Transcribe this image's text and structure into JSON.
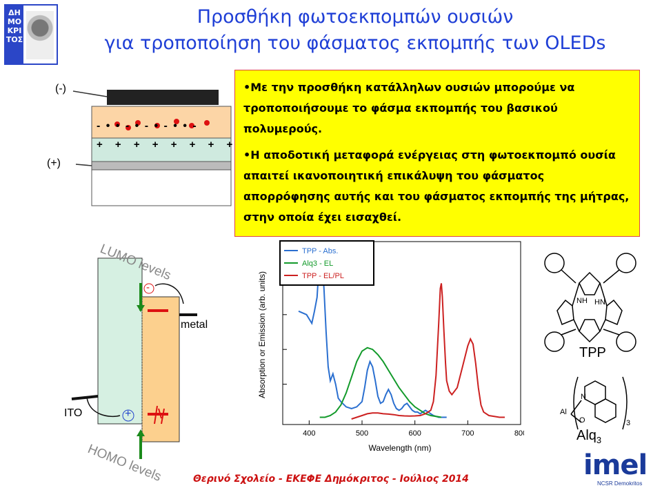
{
  "slide": {
    "title_line1": "Προσθήκη φωτοεκπομπών ουσιών",
    "title_line2": "για τροποποίηση του φάσματος εκπομπής των OLEDs",
    "logo_letters": "ΔΗ ΜΟ ΚΡΙ ΤΟΣ",
    "bullet1": "•Με την προσθήκη κατάλληλων ουσιών μπορούμε να τροποποιήσουμε το φάσμα εκπομπής του βασικού πολυμερούς.",
    "bullet2": "•Η αποδοτική μεταφορά ενέργειας στη φωτοεκπομπό ουσία απαιτεί ικανοποιητική επικάλυψη του φάσματος απορρόφησης αυτής και του φάσματος εκπομπής της μήτρας,  στην οποία έχει εισαχθεί.",
    "footer": "Θερινό Σχολείο - ΕΚΕΦΕ Δημόκριτος - Ιούλιος 2014",
    "imel_word": "imel",
    "imel_sub": "NCSR Demokritos"
  },
  "device_diagram": {
    "cathode_label": "(-)",
    "anode_label": "(+)",
    "minus_row": "- • • - • - • - • • -",
    "plus_row": "+ + + + + + + + + +"
  },
  "energy_diagram": {
    "lumo_label": "LUMO levels",
    "homo_label": "HOMO levels",
    "metal_label": "metal",
    "ito_label": "ITO",
    "electron_sign": "-",
    "hole_sign": "+"
  },
  "chart_data": {
    "type": "line",
    "title": "",
    "xlabel": "Wavelength (nm)",
    "ylabel": "Absorption or Emission (arb. units)",
    "xlim": [
      350,
      800
    ],
    "x_ticks": [
      "400",
      "500",
      "600",
      "700",
      "800"
    ],
    "legend_position": "top-left",
    "series": [
      {
        "name": "TPP - Abs.",
        "color": "#2a6fd0",
        "x": [
          380,
          395,
          405,
          410,
          415,
          418,
          420,
          422,
          424,
          428,
          432,
          436,
          440,
          445,
          450,
          455,
          460,
          470,
          480,
          490,
          500,
          505,
          510,
          515,
          520,
          525,
          530,
          535,
          540,
          545,
          550,
          555,
          560,
          565,
          570,
          575,
          580,
          585,
          590,
          595,
          600,
          605,
          610,
          615,
          620,
          625,
          630,
          635,
          640,
          645,
          650,
          655,
          660
        ],
        "y": [
          0.62,
          0.6,
          0.55,
          0.62,
          0.7,
          0.85,
          0.98,
          1.0,
          0.95,
          0.75,
          0.5,
          0.3,
          0.22,
          0.26,
          0.2,
          0.12,
          0.1,
          0.07,
          0.06,
          0.07,
          0.1,
          0.18,
          0.28,
          0.33,
          0.3,
          0.22,
          0.13,
          0.09,
          0.1,
          0.14,
          0.17,
          0.14,
          0.09,
          0.06,
          0.05,
          0.06,
          0.08,
          0.09,
          0.07,
          0.05,
          0.04,
          0.04,
          0.03,
          0.04,
          0.05,
          0.04,
          0.03,
          0.02,
          0.015,
          0.01,
          0.01,
          0.01,
          0.01
        ]
      },
      {
        "name": "Alq3 - EL",
        "color": "#129a2a",
        "x": [
          420,
          430,
          440,
          450,
          460,
          470,
          480,
          490,
          500,
          510,
          520,
          530,
          540,
          550,
          560,
          570,
          580,
          590,
          600,
          610,
          620,
          630,
          640,
          650
        ],
        "y": [
          0.01,
          0.01,
          0.02,
          0.04,
          0.08,
          0.15,
          0.24,
          0.33,
          0.39,
          0.41,
          0.4,
          0.37,
          0.33,
          0.28,
          0.23,
          0.18,
          0.14,
          0.1,
          0.07,
          0.05,
          0.03,
          0.02,
          0.015,
          0.01
        ]
      },
      {
        "name": "TPP - EL/PL",
        "color": "#cc2020",
        "x": [
          480,
          490,
          500,
          510,
          520,
          530,
          540,
          550,
          560,
          570,
          580,
          590,
          600,
          610,
          620,
          630,
          635,
          640,
          645,
          648,
          650,
          652,
          655,
          658,
          660,
          665,
          670,
          680,
          690,
          700,
          705,
          710,
          715,
          720,
          725,
          730,
          740,
          750,
          760,
          770
        ],
        "y": [
          0.0,
          0.01,
          0.02,
          0.03,
          0.035,
          0.035,
          0.03,
          0.028,
          0.025,
          0.02,
          0.018,
          0.017,
          0.018,
          0.02,
          0.03,
          0.05,
          0.1,
          0.25,
          0.55,
          0.75,
          0.78,
          0.7,
          0.5,
          0.32,
          0.22,
          0.16,
          0.14,
          0.18,
          0.3,
          0.42,
          0.46,
          0.43,
          0.32,
          0.18,
          0.08,
          0.04,
          0.02,
          0.015,
          0.01,
          0.01
        ]
      }
    ]
  },
  "molecules": {
    "tpp_label": "TPP",
    "tpp_nh": "NH",
    "tpp_hn": "HN",
    "alq3_label": "Alq",
    "alq3_sub": "3",
    "alq3_al": "Al",
    "alq3_n": "N",
    "alq3_o": "O",
    "alq3_bracket_sub": "3"
  }
}
